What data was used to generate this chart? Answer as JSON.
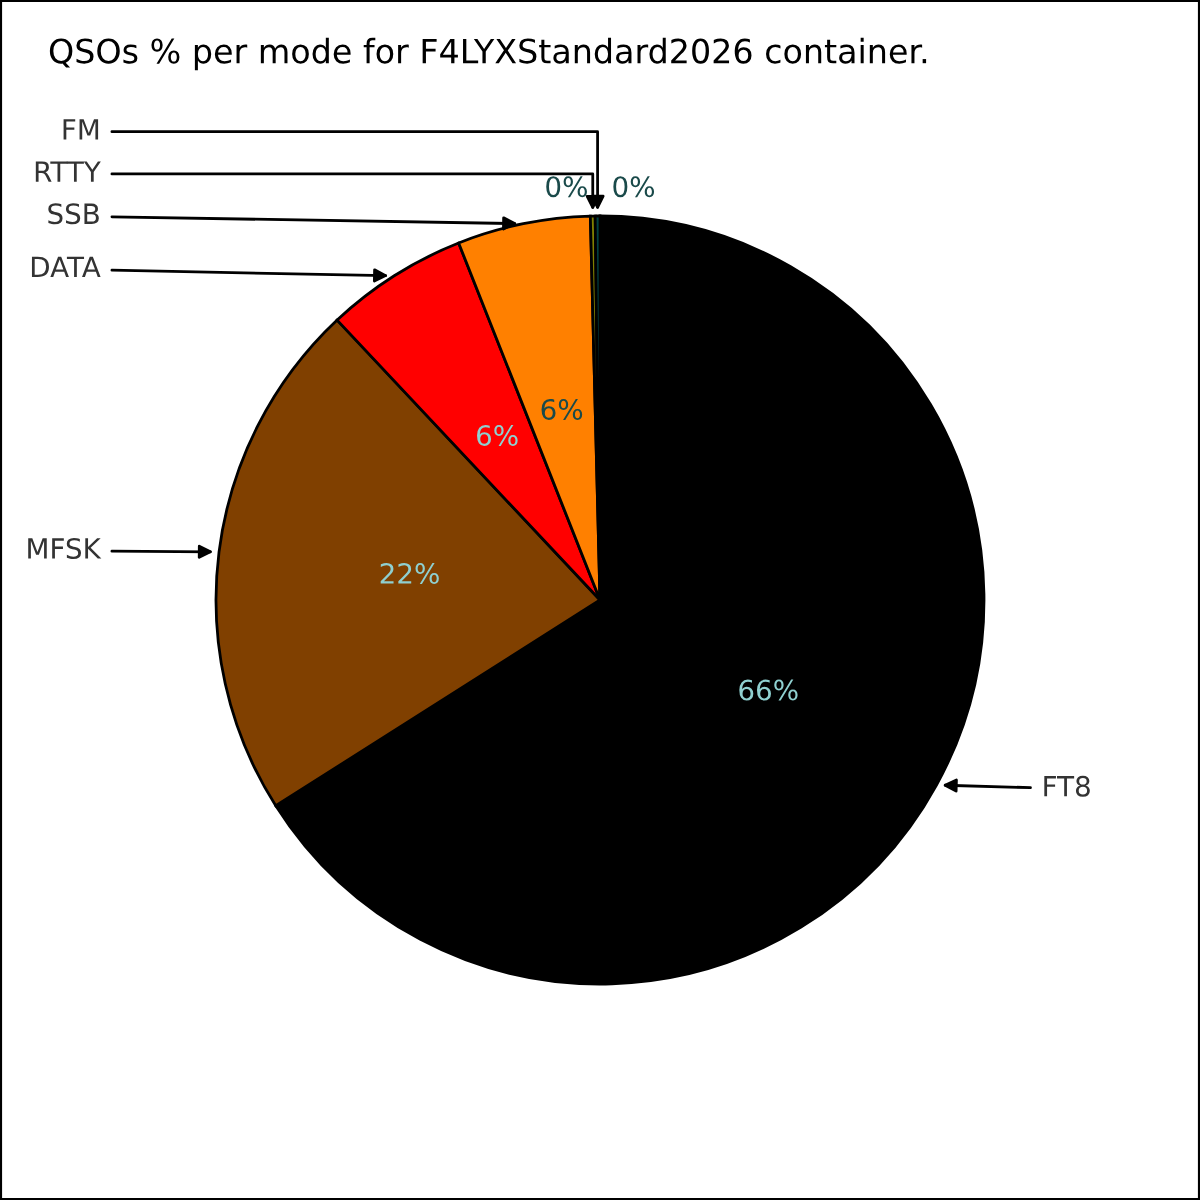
{
  "chart_data": {
    "type": "pie",
    "title": "QSOs % per mode for F4LYXStandard2026 container.",
    "categories": [
      "FT8",
      "MFSK",
      "DATA",
      "SSB",
      "RTTY",
      "FM"
    ],
    "values": [
      66,
      22,
      6,
      5.6,
      0.2,
      0.2
    ],
    "value_labels": [
      "66%",
      "22%",
      "6%",
      "6%",
      "0%",
      "0%"
    ],
    "colors": [
      "#000000",
      "#804000",
      "#ff0000",
      "#ff8000",
      "#808000",
      "#004040"
    ]
  }
}
